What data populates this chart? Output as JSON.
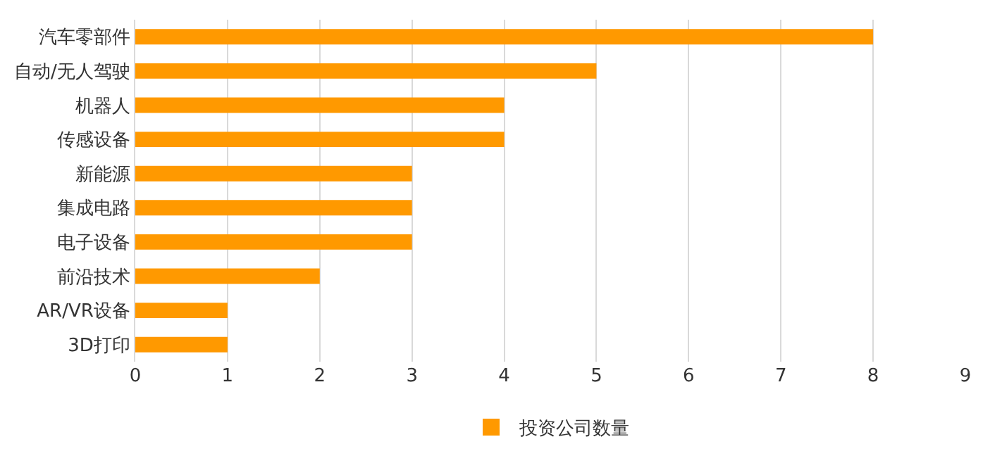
{
  "chart_data": {
    "type": "bar",
    "orientation": "horizontal",
    "categories": [
      "汽车零部件",
      "自动/无人驾驶",
      "机器人",
      "传感设备",
      "新能源",
      "集成电路",
      "电子设备",
      "前沿技术",
      "AR/VR设备",
      "3D打印"
    ],
    "series": [
      {
        "name": "投资公司数量",
        "color": "#ff9900",
        "values": [
          8,
          5,
          4,
          4,
          3,
          3,
          3,
          2,
          1,
          1
        ]
      }
    ],
    "xlim": [
      0,
      9
    ],
    "xticks": [
      0,
      1,
      2,
      3,
      4,
      5,
      6,
      7,
      8,
      9
    ],
    "grid": "x",
    "legend": "bottom"
  }
}
